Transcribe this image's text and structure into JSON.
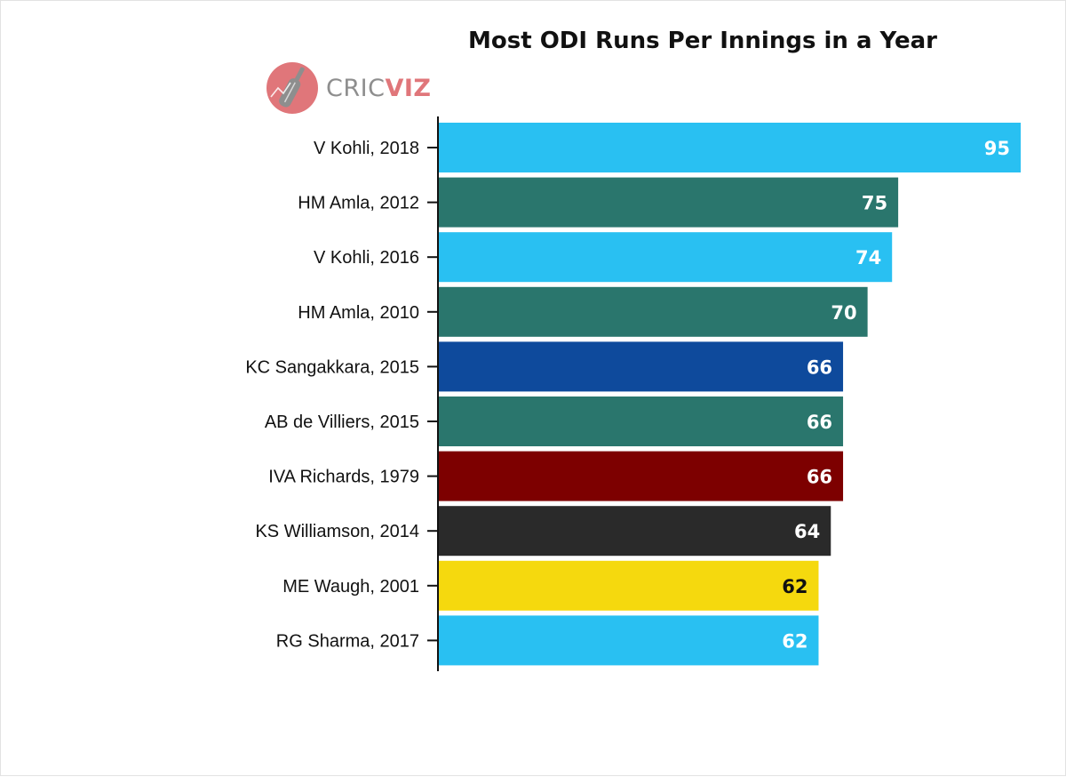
{
  "chart_data": {
    "type": "bar",
    "orientation": "horizontal",
    "title": "Most ODI Runs Per Innings in a Year",
    "categories": [
      "V Kohli, 2018",
      "HM Amla, 2012",
      "V Kohli, 2016",
      "HM Amla, 2010",
      "KC Sangakkara, 2015",
      "AB de Villiers, 2015",
      "IVA Richards, 1979",
      "KS Williamson, 2014",
      "ME Waugh, 2001",
      "RG Sharma, 2017"
    ],
    "values": [
      95,
      75,
      74,
      70,
      66,
      66,
      66,
      64,
      62,
      62
    ],
    "bar_colors": [
      "#29c0f2",
      "#2a766d",
      "#29c0f2",
      "#2a766d",
      "#0e4a9c",
      "#2a766d",
      "#7d0000",
      "#2a2a2a",
      "#f5d90e",
      "#29c0f2"
    ],
    "label_colors": [
      "#ffffff",
      "#ffffff",
      "#ffffff",
      "#ffffff",
      "#ffffff",
      "#ffffff",
      "#ffffff",
      "#ffffff",
      "#111111",
      "#ffffff"
    ],
    "xlim": [
      0,
      95
    ],
    "xlabel": "",
    "ylabel": "",
    "grid": false,
    "legend": "none"
  },
  "logo": {
    "text_a": "CRIC",
    "text_b": "VIZ",
    "icon": "cricket-bat-icon",
    "color_a": "#8e8e8e",
    "color_b": "#e0767a"
  }
}
